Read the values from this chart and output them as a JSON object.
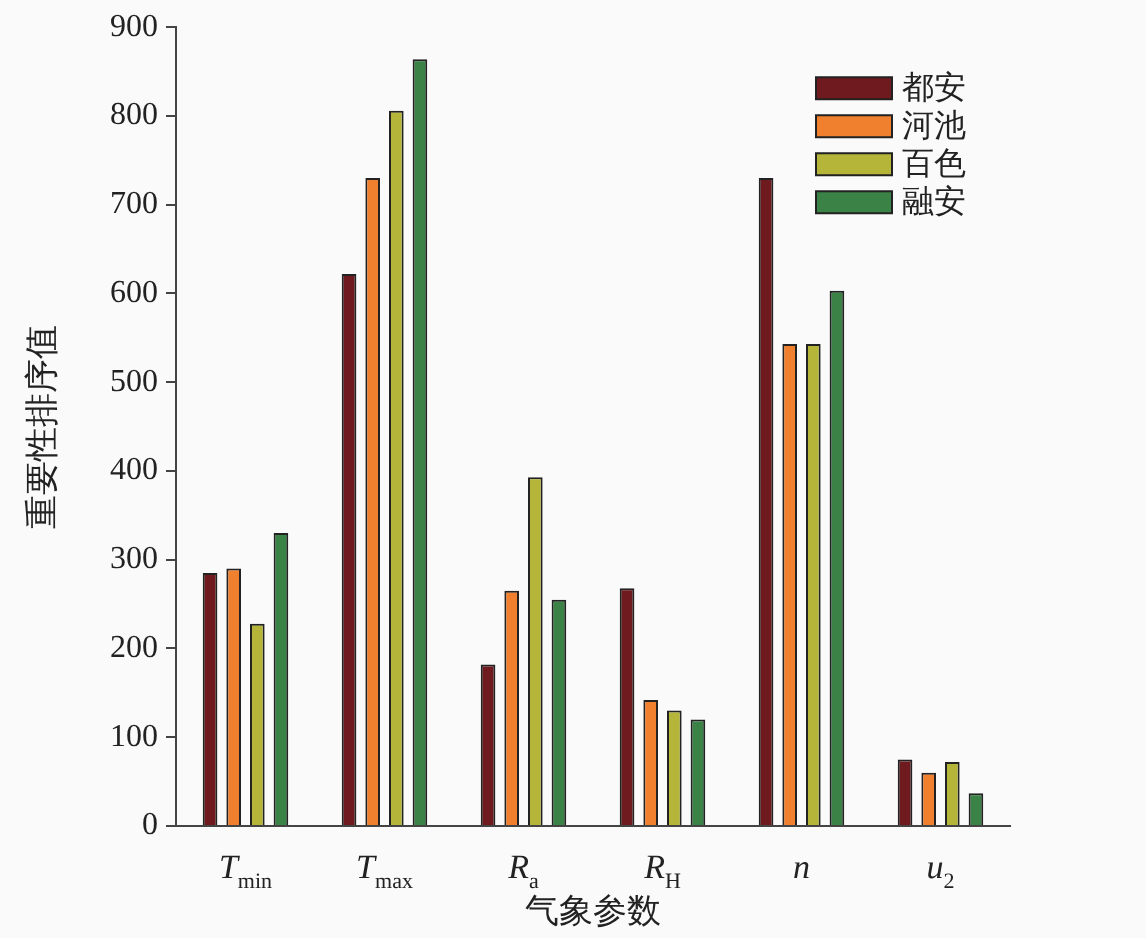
{
  "chart_data": {
    "type": "bar",
    "xlabel": "气象参数",
    "ylabel": "重要性排序值",
    "categories": [
      "T$_{min}$",
      "T$_{max}$",
      "R$_{a}$",
      "R$_{H}$",
      "n",
      "u$_{2}$"
    ],
    "series": [
      {
        "name": "都安",
        "color": "#6e1a1e",
        "values": [
          285,
          622,
          182,
          268,
          730,
          75
        ]
      },
      {
        "name": "河池",
        "color": "#f0802e",
        "values": [
          290,
          730,
          265,
          142,
          543,
          60
        ]
      },
      {
        "name": "百色",
        "color": "#b5b53a",
        "values": [
          228,
          806,
          393,
          130,
          543,
          72
        ]
      },
      {
        "name": "融安",
        "color": "#3a8245",
        "values": [
          330,
          864,
          255,
          120,
          603,
          37
        ]
      }
    ],
    "ylim": [
      0,
      900
    ],
    "yticks": [
      0,
      100,
      200,
      300,
      400,
      500,
      600,
      700,
      800,
      900
    ],
    "grid": false,
    "legend": "top right"
  }
}
